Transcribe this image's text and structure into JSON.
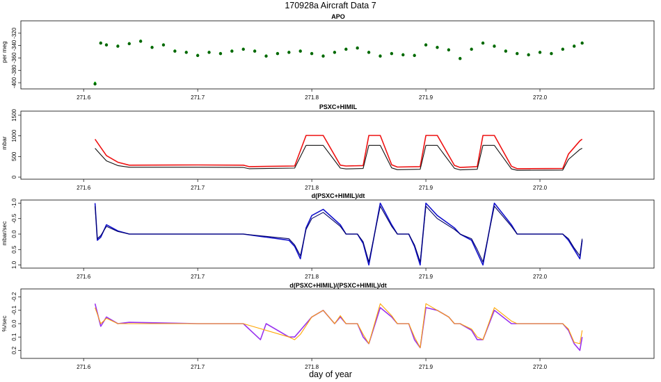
{
  "figure": {
    "title": "170928a   Aircraft Data 7",
    "xlabel": "day of year"
  },
  "chart_data": [
    {
      "type": "scatter",
      "title": "APO",
      "ylabel": "per meg",
      "xlim": [
        271.545,
        272.1
      ],
      "ylim": [
        -410,
        -300
      ],
      "y_reversed": false,
      "xticks": [
        "271.6",
        "271.7",
        "271.8",
        "271.9",
        "272.0"
      ],
      "yticks": [
        "-400",
        "-380",
        "-360",
        "-340",
        "-320"
      ],
      "series": [
        {
          "color": "#22dd22",
          "x": [
            271.61,
            271.615,
            271.62,
            271.63,
            271.64,
            271.65,
            271.66,
            271.67,
            271.68,
            271.69,
            271.7,
            271.71,
            271.72,
            271.73,
            271.74,
            271.75,
            271.76,
            271.77,
            271.78,
            271.79,
            271.8,
            271.81,
            271.82,
            271.83,
            271.84,
            271.85,
            271.86,
            271.87,
            271.88,
            271.89,
            271.9,
            271.91,
            271.92,
            271.93,
            271.94,
            271.95,
            271.96,
            271.97,
            271.98,
            271.99,
            272.0,
            272.01,
            272.02,
            272.03,
            272.037
          ],
          "y": [
            -400,
            -335,
            -338,
            -340,
            -336,
            -332,
            -342,
            -338,
            -348,
            -350,
            -355,
            -350,
            -352,
            -348,
            -345,
            -348,
            -356,
            -352,
            -350,
            -348,
            -352,
            -356,
            -350,
            -345,
            -343,
            -350,
            -356,
            -352,
            -354,
            -355,
            -338,
            -342,
            -346,
            -360,
            -345,
            -335,
            -340,
            -348,
            -352,
            -354,
            -350,
            -352,
            -345,
            -340,
            -335
          ]
        },
        {
          "color": "#006600",
          "x": [
            271.61,
            271.615,
            271.62,
            271.63,
            271.64,
            271.65,
            271.66,
            271.67,
            271.68,
            271.69,
            271.7,
            271.71,
            271.72,
            271.73,
            271.74,
            271.75,
            271.76,
            271.77,
            271.78,
            271.79,
            271.8,
            271.81,
            271.82,
            271.83,
            271.84,
            271.85,
            271.86,
            271.87,
            271.88,
            271.89,
            271.9,
            271.91,
            271.92,
            271.93,
            271.94,
            271.95,
            271.96,
            271.97,
            271.98,
            271.99,
            272.0,
            272.01,
            272.02,
            272.03,
            272.037
          ],
          "y": [
            -402,
            -336,
            -339,
            -341,
            -337,
            -333,
            -343,
            -339,
            -349,
            -351,
            -356,
            -351,
            -353,
            -349,
            -346,
            -349,
            -357,
            -353,
            -351,
            -349,
            -353,
            -357,
            -351,
            -346,
            -344,
            -351,
            -357,
            -353,
            -355,
            -356,
            -339,
            -343,
            -347,
            -361,
            -346,
            -336,
            -341,
            -349,
            -353,
            -355,
            -351,
            -353,
            -346,
            -341,
            -336
          ]
        }
      ]
    },
    {
      "type": "line",
      "title": "PSXC+HIMIL",
      "ylabel": "mbar",
      "xlim": [
        271.545,
        272.1
      ],
      "ylim": [
        -50,
        1600
      ],
      "y_reversed": false,
      "xticks": [
        "271.6",
        "271.7",
        "271.8",
        "271.9",
        "272.0"
      ],
      "yticks": [
        "0",
        "500",
        "1000",
        "1500"
      ],
      "series": [
        {
          "color": "#ee1111",
          "x": [
            271.61,
            271.615,
            271.62,
            271.63,
            271.64,
            271.7,
            271.74,
            271.745,
            271.785,
            271.795,
            271.81,
            271.825,
            271.83,
            271.845,
            271.85,
            271.86,
            271.87,
            271.875,
            271.895,
            271.9,
            271.91,
            271.925,
            271.93,
            271.945,
            271.95,
            271.96,
            271.975,
            271.98,
            272.02,
            272.025,
            272.035,
            272.037
          ],
          "y": [
            920,
            720,
            520,
            360,
            290,
            295,
            290,
            255,
            270,
            1010,
            1010,
            290,
            270,
            280,
            1010,
            1010,
            300,
            245,
            255,
            1010,
            1010,
            285,
            235,
            255,
            1010,
            1010,
            265,
            205,
            210,
            560,
            880,
            920
          ]
        },
        {
          "color": "#111111",
          "x": [
            271.61,
            271.615,
            271.62,
            271.63,
            271.64,
            271.7,
            271.74,
            271.745,
            271.785,
            271.795,
            271.81,
            271.825,
            271.83,
            271.845,
            271.85,
            271.86,
            271.87,
            271.875,
            271.895,
            271.9,
            271.91,
            271.925,
            271.93,
            271.945,
            271.95,
            271.96,
            271.975,
            271.98,
            272.02,
            272.025,
            272.035,
            272.037
          ],
          "y": [
            700,
            545,
            395,
            280,
            240,
            240,
            235,
            205,
            220,
            770,
            770,
            220,
            200,
            210,
            770,
            770,
            225,
            180,
            190,
            770,
            770,
            215,
            175,
            190,
            770,
            770,
            200,
            165,
            170,
            430,
            670,
            700
          ]
        }
      ]
    },
    {
      "type": "line",
      "title": "d(PSXC+HIMIL)/dt",
      "ylabel": "mbar/sec",
      "xlim": [
        271.545,
        272.1
      ],
      "ylim": [
        1.1,
        -1.1
      ],
      "y_reversed": true,
      "xticks": [
        "271.6",
        "271.7",
        "271.8",
        "271.9",
        "272.0"
      ],
      "yticks": [
        "-1.0",
        "-0.5",
        "0.0",
        "0.5",
        "1.0"
      ],
      "series": [
        {
          "color": "#1111cc",
          "x": [
            271.61,
            271.612,
            271.615,
            271.62,
            271.63,
            271.64,
            271.7,
            271.74,
            271.78,
            271.785,
            271.79,
            271.795,
            271.8,
            271.81,
            271.825,
            271.83,
            271.84,
            271.845,
            271.85,
            271.86,
            271.87,
            271.875,
            271.885,
            271.89,
            271.895,
            271.9,
            271.91,
            271.925,
            271.93,
            271.94,
            271.945,
            271.95,
            271.96,
            271.975,
            271.98,
            272.02,
            272.025,
            272.03,
            272.035,
            272.037
          ],
          "y": [
            -1.0,
            0.2,
            0.1,
            -0.3,
            -0.1,
            0.0,
            0.0,
            0.0,
            0.2,
            0.4,
            0.8,
            -0.2,
            -0.6,
            -0.8,
            -0.3,
            0.0,
            0.0,
            0.3,
            1.0,
            -1.0,
            -0.3,
            0.0,
            0.0,
            0.4,
            1.0,
            -1.0,
            -0.6,
            -0.2,
            0.0,
            0.2,
            0.6,
            1.0,
            -1.0,
            -0.3,
            0.0,
            0.0,
            0.2,
            0.5,
            0.8,
            0.2
          ]
        },
        {
          "color": "#000066",
          "x": [
            271.61,
            271.612,
            271.615,
            271.62,
            271.63,
            271.64,
            271.7,
            271.74,
            271.78,
            271.785,
            271.79,
            271.795,
            271.8,
            271.81,
            271.825,
            271.83,
            271.84,
            271.845,
            271.85,
            271.86,
            271.87,
            271.875,
            271.885,
            271.89,
            271.895,
            271.9,
            271.91,
            271.925,
            271.93,
            271.94,
            271.945,
            271.95,
            271.96,
            271.975,
            271.98,
            272.02,
            272.025,
            272.03,
            272.035,
            272.037
          ],
          "y": [
            -0.9,
            0.15,
            0.05,
            -0.25,
            -0.08,
            0.0,
            0.0,
            0.0,
            0.15,
            0.35,
            0.7,
            -0.15,
            -0.5,
            -0.7,
            -0.25,
            0.0,
            0.0,
            0.25,
            0.9,
            -0.9,
            -0.25,
            0.0,
            0.0,
            0.35,
            0.9,
            -0.9,
            -0.5,
            -0.15,
            0.0,
            0.15,
            0.5,
            0.9,
            -0.9,
            -0.25,
            0.0,
            0.0,
            0.15,
            0.45,
            0.7,
            0.15
          ]
        }
      ]
    },
    {
      "type": "line",
      "title": "d(PSXC+HIMIL)/(PSXC+HIMIL)/dt",
      "ylabel": "%/sec",
      "xlim": [
        271.545,
        272.1
      ],
      "ylim": [
        0.26,
        -0.26
      ],
      "y_reversed": true,
      "xticks": [
        "271.6",
        "271.7",
        "271.8",
        "271.9",
        "272.0"
      ],
      "yticks": [
        "-0.2",
        "-0.1",
        "0.0",
        "0.1",
        "0.2"
      ],
      "series": [
        {
          "color": "#9933ee",
          "x": [
            271.61,
            271.615,
            271.62,
            271.63,
            271.64,
            271.7,
            271.74,
            271.755,
            271.76,
            271.78,
            271.785,
            271.79,
            271.8,
            271.81,
            271.82,
            271.825,
            271.83,
            271.84,
            271.845,
            271.85,
            271.86,
            271.87,
            271.875,
            271.885,
            271.89,
            271.895,
            271.9,
            271.91,
            271.92,
            271.925,
            271.93,
            271.94,
            271.945,
            271.95,
            271.96,
            271.975,
            271.98,
            272.02,
            272.025,
            272.03,
            272.035,
            272.037
          ],
          "y": [
            -0.15,
            0.02,
            -0.05,
            0.0,
            -0.01,
            0.0,
            0.0,
            0.12,
            0.0,
            0.1,
            0.1,
            0.05,
            -0.05,
            -0.1,
            0.0,
            -0.05,
            0.0,
            0.0,
            0.1,
            0.15,
            -0.12,
            -0.05,
            0.0,
            0.0,
            0.12,
            0.18,
            -0.12,
            -0.1,
            -0.05,
            0.0,
            0.0,
            0.05,
            0.12,
            0.12,
            -0.1,
            0.0,
            0.0,
            0.0,
            0.05,
            0.15,
            0.2,
            0.1
          ]
        },
        {
          "color": "#ffa500",
          "x": [
            271.61,
            271.615,
            271.62,
            271.63,
            271.64,
            271.7,
            271.74,
            271.78,
            271.785,
            271.79,
            271.8,
            271.81,
            271.82,
            271.825,
            271.83,
            271.84,
            271.845,
            271.85,
            271.86,
            271.87,
            271.875,
            271.885,
            271.89,
            271.895,
            271.9,
            271.91,
            271.92,
            271.925,
            271.93,
            271.94,
            271.945,
            271.95,
            271.96,
            271.975,
            271.98,
            272.02,
            272.025,
            272.03,
            272.035,
            272.037
          ],
          "y": [
            -0.12,
            0.0,
            -0.04,
            0.0,
            0.0,
            0.0,
            0.0,
            0.1,
            0.12,
            0.08,
            -0.05,
            -0.1,
            0.0,
            -0.06,
            0.0,
            0.0,
            0.08,
            0.15,
            -0.15,
            -0.06,
            0.0,
            0.0,
            0.1,
            0.18,
            -0.15,
            -0.1,
            -0.05,
            0.0,
            0.0,
            0.04,
            0.1,
            0.12,
            -0.12,
            -0.02,
            0.0,
            0.0,
            0.04,
            0.14,
            0.15,
            0.05
          ]
        }
      ]
    }
  ]
}
